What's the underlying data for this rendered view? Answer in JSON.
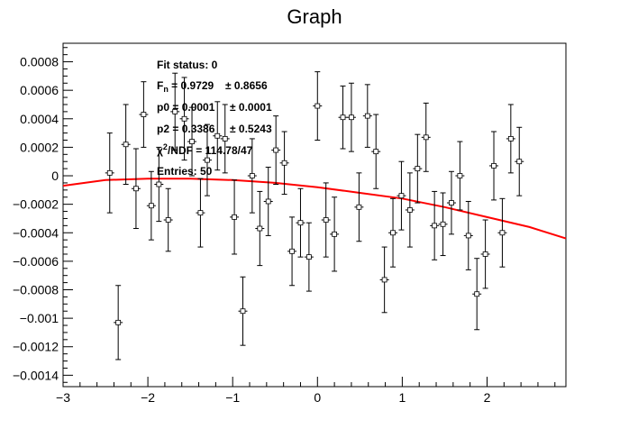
{
  "chart_data": {
    "type": "scatter",
    "title": "Graph",
    "xlabel": "",
    "ylabel": "",
    "xlim": [
      -3,
      2.93
    ],
    "ylim": [
      -0.00148,
      0.00093
    ],
    "x_ticks": [
      -3,
      -2,
      -1,
      0,
      1,
      2
    ],
    "x_tick_labels": [
      "−3",
      "−2",
      "−1",
      "0",
      "1",
      "2"
    ],
    "y_ticks": [
      -0.0014,
      -0.0012,
      -0.001,
      -0.0008,
      -0.0006,
      -0.0004,
      -0.0002,
      0,
      0.0002,
      0.0004,
      0.0006,
      0.0008
    ],
    "y_tick_labels": [
      "−0.0014",
      "−0.0012",
      "−0.001",
      "−0.0008",
      "−0.0006",
      "−0.0004",
      "−0.0002",
      "0",
      "0.0002",
      "0.0004",
      "0.0006",
      "0.0008"
    ],
    "grid": false,
    "points": [
      {
        "x": -2.45,
        "y": 2e-05,
        "err": 0.00028
      },
      {
        "x": -2.35,
        "y": -0.00103,
        "err": 0.00026
      },
      {
        "x": -2.26,
        "y": 0.00022,
        "err": 0.00028
      },
      {
        "x": -2.14,
        "y": -9e-05,
        "err": 0.00028
      },
      {
        "x": -2.05,
        "y": 0.00043,
        "err": 0.00023
      },
      {
        "x": -1.96,
        "y": -0.00021,
        "err": 0.00024
      },
      {
        "x": -1.87,
        "y": -6e-05,
        "err": 0.00026
      },
      {
        "x": -1.76,
        "y": -0.00031,
        "err": 0.00022
      },
      {
        "x": -1.68,
        "y": 0.00045,
        "err": 0.00027
      },
      {
        "x": -1.57,
        "y": 0.0004,
        "err": 0.00029
      },
      {
        "x": -1.48,
        "y": 0.00024,
        "err": 0.00024
      },
      {
        "x": -1.38,
        "y": -0.00026,
        "err": 0.00024
      },
      {
        "x": -1.3,
        "y": 0.00011,
        "err": 0.00025
      },
      {
        "x": -1.18,
        "y": 0.00028,
        "err": 0.00024
      },
      {
        "x": -1.09,
        "y": 0.00026,
        "err": 0.00024
      },
      {
        "x": -0.98,
        "y": -0.00029,
        "err": 0.00026
      },
      {
        "x": -0.88,
        "y": -0.00095,
        "err": 0.00024
      },
      {
        "x": -0.77,
        "y": 0.0,
        "err": 0.00026
      },
      {
        "x": -0.68,
        "y": -0.00037,
        "err": 0.00026
      },
      {
        "x": -0.58,
        "y": -0.00018,
        "err": 0.00024
      },
      {
        "x": -0.49,
        "y": 0.00018,
        "err": 0.00024
      },
      {
        "x": -0.39,
        "y": 9e-05,
        "err": 0.00022
      },
      {
        "x": -0.3,
        "y": -0.00053,
        "err": 0.00024
      },
      {
        "x": -0.2,
        "y": -0.00033,
        "err": 0.00024
      },
      {
        "x": -0.1,
        "y": -0.00057,
        "err": 0.00024
      },
      {
        "x": 0.0,
        "y": 0.00049,
        "err": 0.00024
      },
      {
        "x": 0.1,
        "y": -0.00031,
        "err": 0.00026
      },
      {
        "x": 0.2,
        "y": -0.00041,
        "err": 0.00026
      },
      {
        "x": 0.3,
        "y": 0.00041,
        "err": 0.00022
      },
      {
        "x": 0.4,
        "y": 0.00041,
        "err": 0.00024
      },
      {
        "x": 0.49,
        "y": -0.00022,
        "err": 0.00024
      },
      {
        "x": 0.59,
        "y": 0.00042,
        "err": 0.00022
      },
      {
        "x": 0.69,
        "y": 0.00017,
        "err": 0.00026
      },
      {
        "x": 0.79,
        "y": -0.00073,
        "err": 0.00023
      },
      {
        "x": 0.89,
        "y": -0.0004,
        "err": 0.00024
      },
      {
        "x": 0.99,
        "y": -0.00014,
        "err": 0.00024
      },
      {
        "x": 1.09,
        "y": -0.00024,
        "err": 0.00026
      },
      {
        "x": 1.18,
        "y": 5e-05,
        "err": 0.00024
      },
      {
        "x": 1.28,
        "y": 0.00027,
        "err": 0.00024
      },
      {
        "x": 1.38,
        "y": -0.00035,
        "err": 0.00024
      },
      {
        "x": 1.48,
        "y": -0.00034,
        "err": 0.00022
      },
      {
        "x": 1.58,
        "y": -0.00019,
        "err": 0.00022
      },
      {
        "x": 1.68,
        "y": 0.0,
        "err": 0.00024
      },
      {
        "x": 1.78,
        "y": -0.00042,
        "err": 0.00024
      },
      {
        "x": 1.88,
        "y": -0.00083,
        "err": 0.00025
      },
      {
        "x": 1.98,
        "y": -0.00055,
        "err": 0.00024
      },
      {
        "x": 2.08,
        "y": 7e-05,
        "err": 0.00024
      },
      {
        "x": 2.18,
        "y": -0.0004,
        "err": 0.00024
      },
      {
        "x": 2.28,
        "y": 0.00026,
        "err": 0.00024
      },
      {
        "x": 2.38,
        "y": 0.0001,
        "err": 0.00024
      }
    ],
    "fit_curve": {
      "color": "#ff0000",
      "points": [
        [
          -3.0,
          -7e-05
        ],
        [
          -2.5,
          -3e-05
        ],
        [
          -2.0,
          -2e-05
        ],
        [
          -1.5,
          -2e-05
        ],
        [
          -1.0,
          -3e-05
        ],
        [
          -0.5,
          -5e-05
        ],
        [
          0.0,
          -8e-05
        ],
        [
          0.5,
          -0.00012
        ],
        [
          1.0,
          -0.00016
        ],
        [
          1.5,
          -0.00022
        ],
        [
          2.0,
          -0.00029
        ],
        [
          2.5,
          -0.00036
        ],
        [
          2.93,
          -0.00044
        ]
      ]
    },
    "stats_box": {
      "fit_status": "Fit status: 0",
      "fn_label": "F",
      "fn_sub": "n",
      "fn_value": " = 0.9729",
      "fn_err": "± 0.8656",
      "p0_label": "p0",
      "p0_value": " = 0.0001",
      "p0_err": "± 0.0001",
      "p2_label": "p2",
      "p2_value": " = 0.3386",
      "p2_err": "± 0.5243",
      "chi2_label": "χ",
      "chi2_sup": "2",
      "chi2_value": "/NDF = 114.78/47",
      "entries": "Entries: 50"
    },
    "marker_color": "#000000"
  }
}
